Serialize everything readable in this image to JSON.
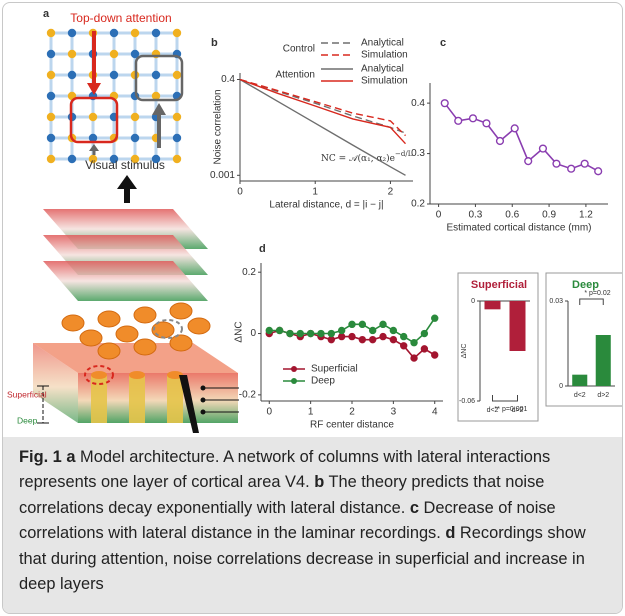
{
  "panel_a": {
    "label": "a",
    "top_down": "Top-down attention",
    "stimulus": "Visual stimulus",
    "superficial": "Superficial",
    "deep": "Deep"
  },
  "chart_data": [
    {
      "type": "line",
      "panel": "b",
      "log_y": true,
      "x": [
        0,
        0.5,
        1,
        1.5,
        2,
        2.2
      ],
      "groups": [
        {
          "name": "Control",
          "dashed": true,
          "series": [
            {
              "name": "Analytical",
              "color": "#6e6e6e",
              "values": [
                0.4,
                0.19,
                0.091,
                0.041,
                0.02,
                0.014
              ]
            },
            {
              "name": "Simulation",
              "color": "#d8281e",
              "values": [
                0.4,
                0.2,
                0.1,
                0.049,
                0.03,
                0.012
              ]
            }
          ]
        },
        {
          "name": "Attention",
          "dashed": false,
          "series": [
            {
              "name": "Analytical",
              "color": "#6e6e6e",
              "values": [
                0.4,
                0.102,
                0.026,
                0.0066,
                0.0017,
                0.001
              ]
            },
            {
              "name": "Simulation",
              "color": "#d8281e",
              "values": [
                0.4,
                0.169,
                0.076,
                0.034,
                0.02,
                0.0072
              ]
            }
          ]
        }
      ],
      "xlim": [
        0,
        2.3
      ],
      "xticks": [
        0,
        1,
        2
      ],
      "ylim": [
        0.0007,
        0.6
      ],
      "yticks": [
        0.4,
        0.001
      ],
      "x_label": "Lateral distance,  d = |i − j|",
      "y_label": "Noise correlation",
      "annotation": {
        "text": "NC = 𝒜(α₁, α₂)e",
        "superscript": "−d/L"
      }
    },
    {
      "type": "line",
      "panel": "c",
      "marker": "open-circle",
      "x": [
        0.05,
        0.16,
        0.28,
        0.39,
        0.5,
        0.62,
        0.73,
        0.85,
        0.96,
        1.08,
        1.19,
        1.3
      ],
      "series": [
        {
          "color": "#8a3db0",
          "values": [
            0.4,
            0.365,
            0.37,
            0.36,
            0.325,
            0.35,
            0.285,
            0.31,
            0.28,
            0.27,
            0.28,
            0.265
          ]
        }
      ],
      "xlim": [
        -0.07,
        1.38
      ],
      "xticks": [
        0,
        0.3,
        0.6,
        0.9,
        1.2
      ],
      "ylim": [
        0.2,
        0.44
      ],
      "yticks": [
        0.4,
        0.3,
        0.2
      ],
      "x_label": "Estimated cortical distance (mm)"
    },
    {
      "type": "line",
      "panel": "d",
      "marker": "circle",
      "x": [
        0,
        0.25,
        0.5,
        0.75,
        1,
        1.25,
        1.5,
        1.75,
        2,
        2.25,
        2.5,
        2.75,
        3,
        3.25,
        3.5,
        3.75,
        4
      ],
      "series": [
        {
          "name": "Superficial",
          "color": "#a3152f",
          "values": [
            0,
            0.01,
            0,
            -0.01,
            0,
            -0.01,
            -0.02,
            -0.01,
            -0.01,
            -0.02,
            -0.02,
            -0.01,
            -0.02,
            -0.04,
            -0.08,
            -0.05,
            -0.07
          ]
        },
        {
          "name": "Deep",
          "color": "#2a8a3c",
          "values": [
            0.01,
            0.01,
            0,
            0,
            0,
            0,
            0,
            0.01,
            0.03,
            0.03,
            0.01,
            0.03,
            0.01,
            -0.01,
            -0.03,
            0,
            0.05
          ]
        }
      ],
      "xlim": [
        -0.2,
        4.2
      ],
      "xticks": [
        0,
        1,
        2,
        3,
        4
      ],
      "ylim": [
        -0.22,
        0.23
      ],
      "yticks": [
        0.2,
        0,
        -0.2
      ],
      "x_label": "RF center distance",
      "y_label": "ΔNC"
    },
    {
      "type": "bar",
      "title": "Superficial",
      "title_color": "#b01f3a",
      "color": "#b01f3a",
      "categories": [
        "d<2",
        "d>2"
      ],
      "values": [
        -0.005,
        -0.03
      ],
      "ylim": [
        -0.06,
        0
      ],
      "yticks": [
        0,
        -0.06
      ],
      "y_label": "ΔNC",
      "annotation": "** p=0.001"
    },
    {
      "type": "bar",
      "title": "Deep",
      "title_color": "#2a8a3c",
      "color": "#2a8a3c",
      "categories": [
        "d<2",
        "d>2"
      ],
      "values": [
        0.004,
        0.018
      ],
      "ylim": [
        0,
        0.03
      ],
      "yticks": [
        0.03,
        0
      ],
      "annotation": "* p=0.02"
    }
  ],
  "caption": {
    "title": "Fig. 1",
    "parts": [
      {
        "label": "a",
        "text": " Model architecture. A network of columns with lateral interactions represents one layer of cortical area V4. "
      },
      {
        "label": "b",
        "text": " The theory predicts that noise correlations decay exponentially with lateral distance. "
      },
      {
        "label": "c",
        "text": " Decrease of noise correlations with lateral distance in the laminar recordings. "
      },
      {
        "label": "d",
        "text": " Recordings show that during attention, noise correlations decrease in superficial and increase in deep layers"
      }
    ]
  }
}
